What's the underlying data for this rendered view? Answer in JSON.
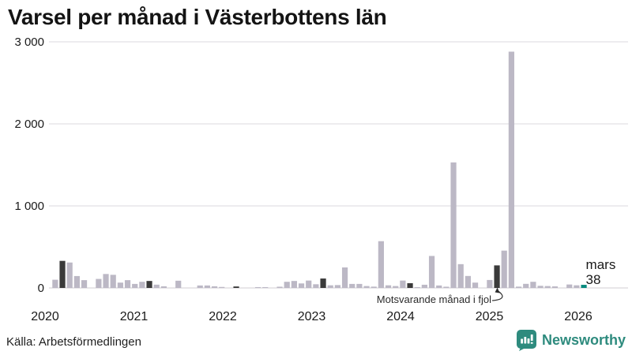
{
  "title": "Varsel per månad i Västerbottens län",
  "source": "Källa: Arbetsförmedlingen",
  "branding": {
    "name": "Newsworthy",
    "color": "#2e8b7e"
  },
  "annotation": {
    "text": "Motsvarande månad i fjol",
    "target_month": "2025-03"
  },
  "highlight_label": {
    "month_name": "mars",
    "value": "38"
  },
  "colors": {
    "bar": "#bcb8c5",
    "highlight_dark": "#3a3a3a",
    "highlight_current": "#088a7e",
    "grid": "#e2e1e5",
    "baseline": "#d9d8dc",
    "text": "#1a1a1a"
  },
  "chart_data": {
    "type": "bar",
    "title": "Varsel per månad i Västerbottens län",
    "xlabel": "",
    "ylabel": "",
    "ylim": [
      0,
      3000
    ],
    "grid": "horizontal",
    "x_axis": {
      "years": [
        "2020",
        "2021",
        "2022",
        "2023",
        "2024",
        "2025",
        "2026"
      ]
    },
    "y_axis": {
      "ticks": [
        {
          "label": "0",
          "value": 0
        },
        {
          "label": "1 000",
          "value": 1000
        },
        {
          "label": "2 000",
          "value": 2000
        },
        {
          "label": "3 000",
          "value": 3000
        }
      ]
    },
    "months": [
      {
        "ym": "2020-01",
        "v": 0,
        "t": "n"
      },
      {
        "ym": "2020-02",
        "v": 100,
        "t": "n"
      },
      {
        "ym": "2020-03",
        "v": 330,
        "t": "f"
      },
      {
        "ym": "2020-04",
        "v": 310,
        "t": "n"
      },
      {
        "ym": "2020-05",
        "v": 145,
        "t": "n"
      },
      {
        "ym": "2020-06",
        "v": 95,
        "t": "n"
      },
      {
        "ym": "2020-07",
        "v": 0,
        "t": "n"
      },
      {
        "ym": "2020-08",
        "v": 110,
        "t": "n"
      },
      {
        "ym": "2020-09",
        "v": 170,
        "t": "n"
      },
      {
        "ym": "2020-10",
        "v": 160,
        "t": "n"
      },
      {
        "ym": "2020-11",
        "v": 65,
        "t": "n"
      },
      {
        "ym": "2020-12",
        "v": 95,
        "t": "n"
      },
      {
        "ym": "2021-01",
        "v": 49,
        "t": "n"
      },
      {
        "ym": "2021-02",
        "v": 75,
        "t": "n"
      },
      {
        "ym": "2021-03",
        "v": 85,
        "t": "f"
      },
      {
        "ym": "2021-04",
        "v": 40,
        "t": "n"
      },
      {
        "ym": "2021-05",
        "v": 20,
        "t": "n"
      },
      {
        "ym": "2021-06",
        "v": 0,
        "t": "n"
      },
      {
        "ym": "2021-07",
        "v": 88,
        "t": "n"
      },
      {
        "ym": "2021-08",
        "v": 0,
        "t": "n"
      },
      {
        "ym": "2021-09",
        "v": 0,
        "t": "n"
      },
      {
        "ym": "2021-10",
        "v": 30,
        "t": "n"
      },
      {
        "ym": "2021-11",
        "v": 30,
        "t": "n"
      },
      {
        "ym": "2021-12",
        "v": 20,
        "t": "n"
      },
      {
        "ym": "2022-01",
        "v": 12,
        "t": "n"
      },
      {
        "ym": "2022-02",
        "v": 0,
        "t": "n"
      },
      {
        "ym": "2022-03",
        "v": 18,
        "t": "f"
      },
      {
        "ym": "2022-04",
        "v": 0,
        "t": "n"
      },
      {
        "ym": "2022-05",
        "v": 0,
        "t": "n"
      },
      {
        "ym": "2022-06",
        "v": 10,
        "t": "n"
      },
      {
        "ym": "2022-07",
        "v": 10,
        "t": "n"
      },
      {
        "ym": "2022-08",
        "v": 0,
        "t": "n"
      },
      {
        "ym": "2022-09",
        "v": 15,
        "t": "n"
      },
      {
        "ym": "2022-10",
        "v": 75,
        "t": "n"
      },
      {
        "ym": "2022-11",
        "v": 85,
        "t": "n"
      },
      {
        "ym": "2022-12",
        "v": 55,
        "t": "n"
      },
      {
        "ym": "2023-01",
        "v": 90,
        "t": "n"
      },
      {
        "ym": "2023-02",
        "v": 45,
        "t": "n"
      },
      {
        "ym": "2023-03",
        "v": 115,
        "t": "f"
      },
      {
        "ym": "2023-04",
        "v": 32,
        "t": "n"
      },
      {
        "ym": "2023-05",
        "v": 35,
        "t": "n"
      },
      {
        "ym": "2023-06",
        "v": 250,
        "t": "n"
      },
      {
        "ym": "2023-07",
        "v": 49,
        "t": "n"
      },
      {
        "ym": "2023-08",
        "v": 49,
        "t": "n"
      },
      {
        "ym": "2023-09",
        "v": 23,
        "t": "n"
      },
      {
        "ym": "2023-10",
        "v": 16,
        "t": "n"
      },
      {
        "ym": "2023-11",
        "v": 570,
        "t": "n"
      },
      {
        "ym": "2023-12",
        "v": 32,
        "t": "n"
      },
      {
        "ym": "2024-01",
        "v": 23,
        "t": "n"
      },
      {
        "ym": "2024-02",
        "v": 90,
        "t": "n"
      },
      {
        "ym": "2024-03",
        "v": 58,
        "t": "f"
      },
      {
        "ym": "2024-04",
        "v": 10,
        "t": "n"
      },
      {
        "ym": "2024-05",
        "v": 39,
        "t": "n"
      },
      {
        "ym": "2024-06",
        "v": 390,
        "t": "n"
      },
      {
        "ym": "2024-07",
        "v": 30,
        "t": "n"
      },
      {
        "ym": "2024-08",
        "v": 15,
        "t": "n"
      },
      {
        "ym": "2024-09",
        "v": 1530,
        "t": "n"
      },
      {
        "ym": "2024-10",
        "v": 290,
        "t": "n"
      },
      {
        "ym": "2024-11",
        "v": 146,
        "t": "n"
      },
      {
        "ym": "2024-12",
        "v": 65,
        "t": "n"
      },
      {
        "ym": "2025-01",
        "v": 0,
        "t": "n"
      },
      {
        "ym": "2025-02",
        "v": 97,
        "t": "n"
      },
      {
        "ym": "2025-03",
        "v": 275,
        "t": "f"
      },
      {
        "ym": "2025-04",
        "v": 455,
        "t": "n"
      },
      {
        "ym": "2025-05",
        "v": 2880,
        "t": "n"
      },
      {
        "ym": "2025-06",
        "v": 16,
        "t": "n"
      },
      {
        "ym": "2025-07",
        "v": 50,
        "t": "n"
      },
      {
        "ym": "2025-08",
        "v": 75,
        "t": "n"
      },
      {
        "ym": "2025-09",
        "v": 26,
        "t": "n"
      },
      {
        "ym": "2025-10",
        "v": 23,
        "t": "n"
      },
      {
        "ym": "2025-11",
        "v": 19,
        "t": "n"
      },
      {
        "ym": "2025-12",
        "v": 0,
        "t": "n"
      },
      {
        "ym": "2026-01",
        "v": 42,
        "t": "n"
      },
      {
        "ym": "2026-02",
        "v": 32,
        "t": "n"
      },
      {
        "ym": "2026-03",
        "v": 38,
        "t": "c"
      }
    ]
  }
}
